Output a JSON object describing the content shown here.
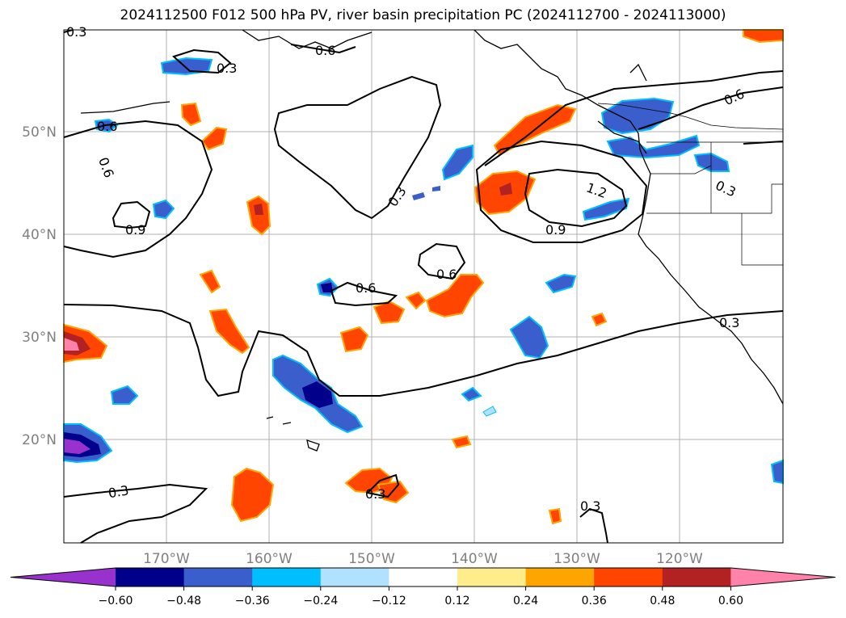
{
  "title": "2024112500 F012 500 hPa PV, river basin precipitation PC (2024112700 - 2024113000)",
  "map": {
    "lat_labels": [
      "50°N",
      "40°N",
      "30°N",
      "20°N"
    ],
    "lon_labels": [
      "170°W",
      "160°W",
      "150°W",
      "140°W",
      "130°W",
      "120°W"
    ],
    "contour_labels": [
      "0.3",
      "0.6",
      "0.3",
      "0.6",
      "0.6",
      "0.9",
      "0.3",
      "1.2",
      "0.9",
      "0.6",
      "0.6",
      "0.3",
      "0.3",
      "0.3",
      "0.3",
      "0.6",
      "0.3"
    ]
  },
  "colorbar": {
    "ticks": [
      "−0.60",
      "−0.48",
      "−0.36",
      "−0.24",
      "−0.12",
      "0.12",
      "0.24",
      "0.36",
      "0.48",
      "0.60"
    ],
    "colors": [
      "#9932CC",
      "#00008B",
      "#3A5FCD",
      "#00BFFF",
      "#B0E2FF",
      "#FFFFFF",
      "#FFEC8B",
      "#FFA500",
      "#FF4500",
      "#B22222",
      "#FF82AB"
    ]
  }
}
